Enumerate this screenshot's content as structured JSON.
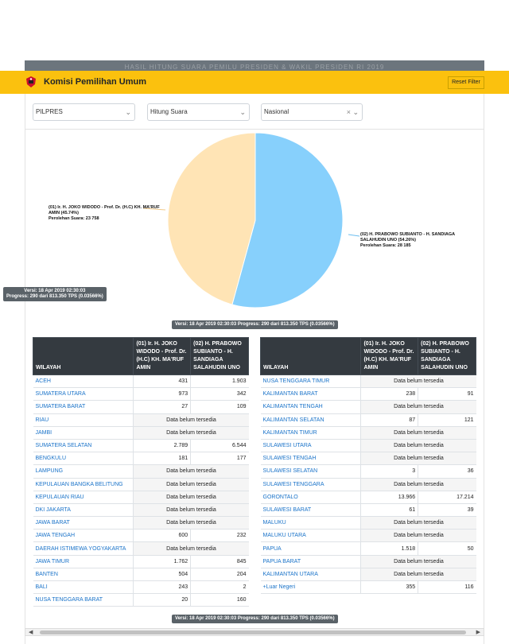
{
  "banner": "HASIL HITUNG SUARA PEMILU PRESIDEN & WAKIL PRESIDEN RI 2019",
  "navbar": {
    "brand": "Komisi Pemilihan Umum",
    "reset_label": "Reset Filter"
  },
  "filters": {
    "election": "PILPRES",
    "mode": "Hitung Suara",
    "region": "Nasional"
  },
  "pie": {
    "slices": [
      {
        "name": "(01) Ir. H. JOKO WIDODO - Prof. Dr. (H.C) KH. MA'RUF AMIN (45.74%)",
        "votes_label": "Perolehan Suara: 23 758",
        "value": 23758,
        "color": "#ffe4b5"
      },
      {
        "name": "(02) H. PRABOWO SUBIANTO - H. SANDIAGA SALAHUDIN UNO (54.26%)",
        "votes_label": "Perolehan Suara: 28 185",
        "value": 28185,
        "color": "#87d0fc"
      }
    ],
    "tooltip_version": "Versi: 18 Apr 2019 02:30:03",
    "tooltip_progress": "Progress: 290 dari 813.350 TPS (0.03566%)"
  },
  "version_badge": "Versi: 18 Apr 2019 02:30:03 Progress: 290 dari 813.350 TPS (0.03566%)",
  "table_headers": {
    "region": "WILAYAH",
    "c1": "(01) Ir. H. JOKO WIDODO - Prof. Dr. (H.C) KH. MA'RUF AMIN",
    "c2": "(02) H. PRABOWO SUBIANTO - H. SANDIAGA SALAHUDIN UNO"
  },
  "na_text": "Data belum tersedia",
  "left_rows": [
    {
      "region": "ACEH",
      "v1": "431",
      "v2": "1.903"
    },
    {
      "region": "SUMATERA UTARA",
      "v1": "973",
      "v2": "342"
    },
    {
      "region": "SUMATERA BARAT",
      "v1": "27",
      "v2": "109"
    },
    {
      "region": "RIAU",
      "na": true
    },
    {
      "region": "JAMBI",
      "na": true
    },
    {
      "region": "SUMATERA SELATAN",
      "v1": "2.789",
      "v2": "6.544"
    },
    {
      "region": "BENGKULU",
      "v1": "181",
      "v2": "177"
    },
    {
      "region": "LAMPUNG",
      "na": true
    },
    {
      "region": "KEPULAUAN BANGKA BELITUNG",
      "na": true
    },
    {
      "region": "KEPULAUAN RIAU",
      "na": true
    },
    {
      "region": "DKI JAKARTA",
      "na": true
    },
    {
      "region": "JAWA BARAT",
      "na": true
    },
    {
      "region": "JAWA TENGAH",
      "v1": "600",
      "v2": "232"
    },
    {
      "region": "DAERAH ISTIMEWA YOGYAKARTA",
      "na": true
    },
    {
      "region": "JAWA TIMUR",
      "v1": "1.762",
      "v2": "845"
    },
    {
      "region": "BANTEN",
      "v1": "504",
      "v2": "204"
    },
    {
      "region": "BALI",
      "v1": "243",
      "v2": "2"
    },
    {
      "region": "NUSA TENGGARA BARAT",
      "v1": "20",
      "v2": "160"
    }
  ],
  "right_rows": [
    {
      "region": "NUSA TENGGARA TIMUR",
      "na": true
    },
    {
      "region": "KALIMANTAN BARAT",
      "v1": "238",
      "v2": "91"
    },
    {
      "region": "KALIMANTAN TENGAH",
      "na": true
    },
    {
      "region": "KALIMANTAN SELATAN",
      "v1": "87",
      "v2": "121"
    },
    {
      "region": "KALIMANTAN TIMUR",
      "na": true
    },
    {
      "region": "SULAWESI UTARA",
      "na": true
    },
    {
      "region": "SULAWESI TENGAH",
      "na": true
    },
    {
      "region": "SULAWESI SELATAN",
      "v1": "3",
      "v2": "36"
    },
    {
      "region": "SULAWESI TENGGARA",
      "na": true
    },
    {
      "region": "GORONTALO",
      "v1": "13.966",
      "v2": "17.214"
    },
    {
      "region": "SULAWESI BARAT",
      "v1": "61",
      "v2": "39"
    },
    {
      "region": "MALUKU",
      "na": true
    },
    {
      "region": "MALUKU UTARA",
      "na": true
    },
    {
      "region": "PAPUA",
      "v1": "1.518",
      "v2": "50"
    },
    {
      "region": "PAPUA BARAT",
      "na": true
    },
    {
      "region": "KALIMANTAN UTARA",
      "na": true
    },
    {
      "region": "+Luar Negeri",
      "v1": "355",
      "v2": "116"
    }
  ]
}
